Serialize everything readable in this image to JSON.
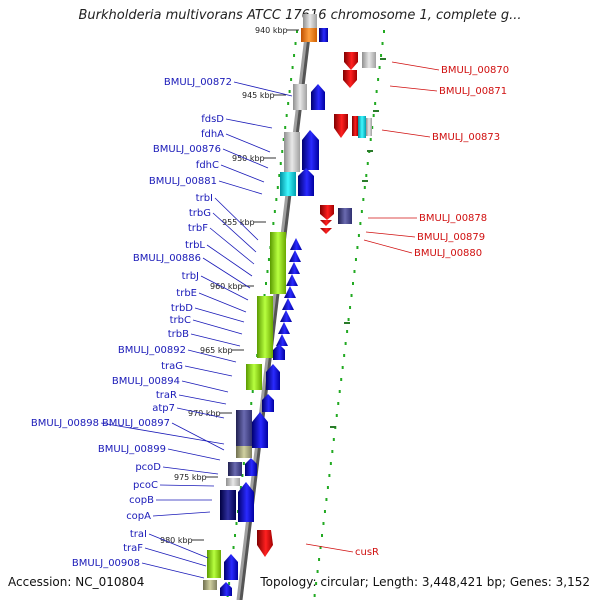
{
  "title": "Burkholderia multivorans ATCC 17616 chromosome 1, complete g...",
  "footer": {
    "accession": "Accession: NC_010804",
    "topology": "Topology: circular; Length: 3,448,421 bp; Genes: 3,152"
  },
  "ticks": [
    "940 kbp",
    "945 kbp",
    "950 kbp",
    "955 kbp",
    "960 kbp",
    "965 kbp",
    "970 kbp",
    "975 kbp",
    "980 kbp"
  ],
  "left_labels": [
    "BMULJ_00872",
    "fdsD",
    "fdhA",
    "BMULJ_00876",
    "fdhC",
    "BMULJ_00881",
    "trbI",
    "trbG",
    "trbF",
    "trbL",
    "BMULJ_00886",
    "trbJ",
    "trbE",
    "trbD",
    "trbC",
    "trbB",
    "BMULJ_00892",
    "traG",
    "BMULJ_00894",
    "traR",
    "atp7",
    "BMULJ_00898",
    "BMULJ_00897",
    "BMULJ_00899",
    "pcoD",
    "pcoC",
    "copB",
    "copA",
    "traI",
    "traF",
    "BMULJ_00908"
  ],
  "right_labels": [
    "BMULJ_00870",
    "BMULJ_00871",
    "BMULJ_00873",
    "BMULJ_00878",
    "BMULJ_00879",
    "BMULJ_00880",
    "cusR"
  ],
  "colors": {
    "left_label": "#1a1ab8",
    "right_label": "#d01010",
    "forward_gene": "#1010d8",
    "reverse_gene": "#e01010",
    "dots": "#22aa22"
  }
}
